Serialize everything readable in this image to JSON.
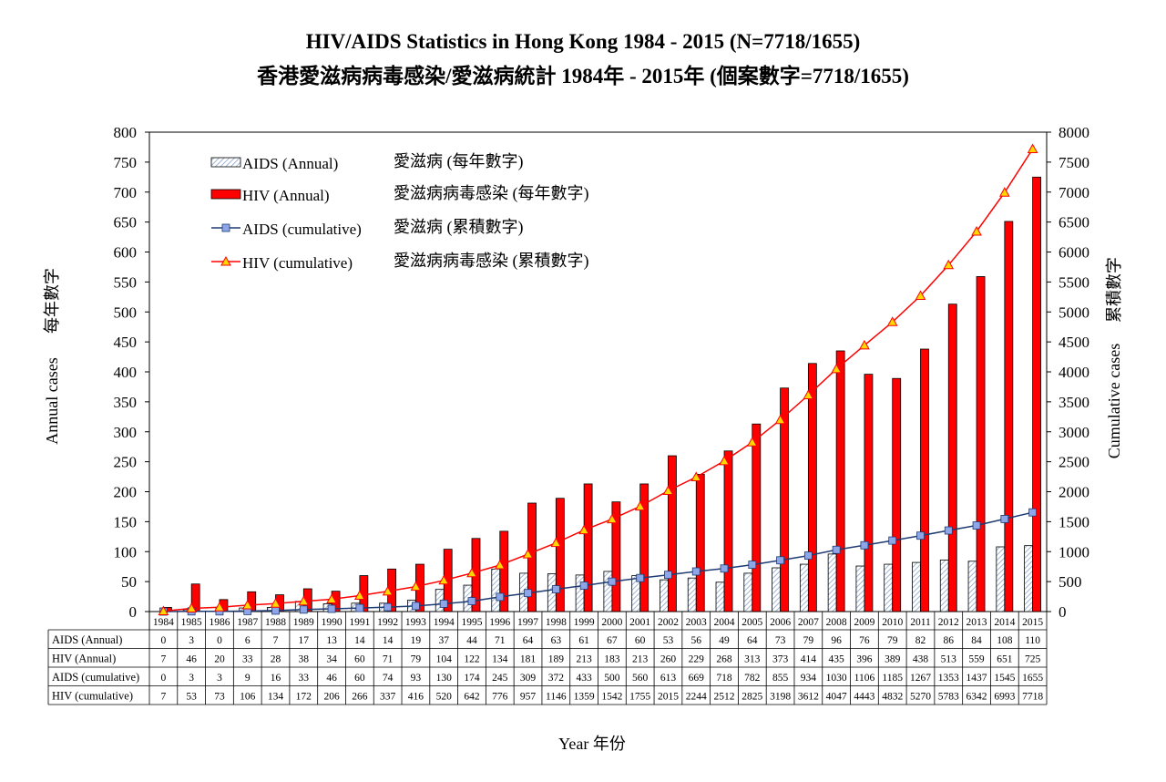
{
  "chart_data": {
    "type": "bar",
    "title": "HIV/AIDS Statistics in Hong Kong 1984 - 2015 (N=7718/1655)",
    "subtitle": "香港愛滋病病毒感染/愛滋病統計 1984年 - 2015年 (個案數字=7718/1655)",
    "xlabel": "Year 年份",
    "ylabel_left": "Annual cases",
    "ylabel_left_cn": "每年數字",
    "ylabel_right": "Cumulative cases",
    "ylabel_right_cn": "累積數字",
    "ylim_left": [
      0,
      800
    ],
    "ylim_right": [
      0,
      8000
    ],
    "yticks_left": [
      0,
      50,
      100,
      150,
      200,
      250,
      300,
      350,
      400,
      450,
      500,
      550,
      600,
      650,
      700,
      750,
      800
    ],
    "yticks_right": [
      0,
      500,
      1000,
      1500,
      2000,
      2500,
      3000,
      3500,
      4000,
      4500,
      5000,
      5500,
      6000,
      6500,
      7000,
      7500,
      8000
    ],
    "categories": [
      "1984",
      "1985",
      "1986",
      "1987",
      "1988",
      "1989",
      "1990",
      "1991",
      "1992",
      "1993",
      "1994",
      "1995",
      "1996",
      "1997",
      "1998",
      "1999",
      "2000",
      "2001",
      "2002",
      "2003",
      "2004",
      "2005",
      "2006",
      "2007",
      "2008",
      "2009",
      "2010",
      "2011",
      "2012",
      "2013",
      "2014",
      "2015"
    ],
    "series": [
      {
        "name": "AIDS (Annual)",
        "name_cn": "愛滋病 (每年數字)",
        "kind": "bar",
        "axis": "left",
        "color": "#9fb4d4",
        "values": [
          0,
          3,
          0,
          6,
          7,
          17,
          13,
          14,
          14,
          19,
          37,
          44,
          71,
          64,
          63,
          61,
          67,
          60,
          53,
          56,
          49,
          64,
          73,
          79,
          96,
          76,
          79,
          82,
          86,
          84,
          108,
          110
        ]
      },
      {
        "name": "HIV (Annual)",
        "name_cn": "愛滋病病毒感染 (每年數字)",
        "kind": "bar",
        "axis": "left",
        "color": "#ff0000",
        "values": [
          7,
          46,
          20,
          33,
          28,
          38,
          34,
          60,
          71,
          79,
          104,
          122,
          134,
          181,
          189,
          213,
          183,
          213,
          260,
          229,
          268,
          313,
          373,
          414,
          435,
          396,
          389,
          438,
          513,
          559,
          651,
          725
        ]
      },
      {
        "name": "AIDS (cumulative)",
        "name_cn": "愛滋病 (累積數字)",
        "kind": "line",
        "axis": "right",
        "color": "#1f3b73",
        "marker_color": "#8ea6e8",
        "values": [
          0,
          3,
          3,
          9,
          16,
          33,
          46,
          60,
          74,
          93,
          130,
          174,
          245,
          309,
          372,
          433,
          500,
          560,
          613,
          669,
          718,
          782,
          855,
          934,
          1030,
          1106,
          1185,
          1267,
          1353,
          1437,
          1545,
          1655
        ]
      },
      {
        "name": "HIV (cumulative)",
        "name_cn": "愛滋病病毒感染 (累積數字)",
        "kind": "line",
        "axis": "right",
        "color": "#ff0000",
        "marker_color": "#ffd700",
        "values": [
          7,
          53,
          73,
          106,
          134,
          172,
          206,
          266,
          337,
          416,
          520,
          642,
          776,
          957,
          1146,
          1359,
          1542,
          1755,
          2015,
          2244,
          2512,
          2825,
          3198,
          3612,
          4047,
          4443,
          4832,
          5270,
          5783,
          6342,
          6993,
          7718
        ]
      }
    ],
    "grid": false,
    "legend": "top-left"
  }
}
